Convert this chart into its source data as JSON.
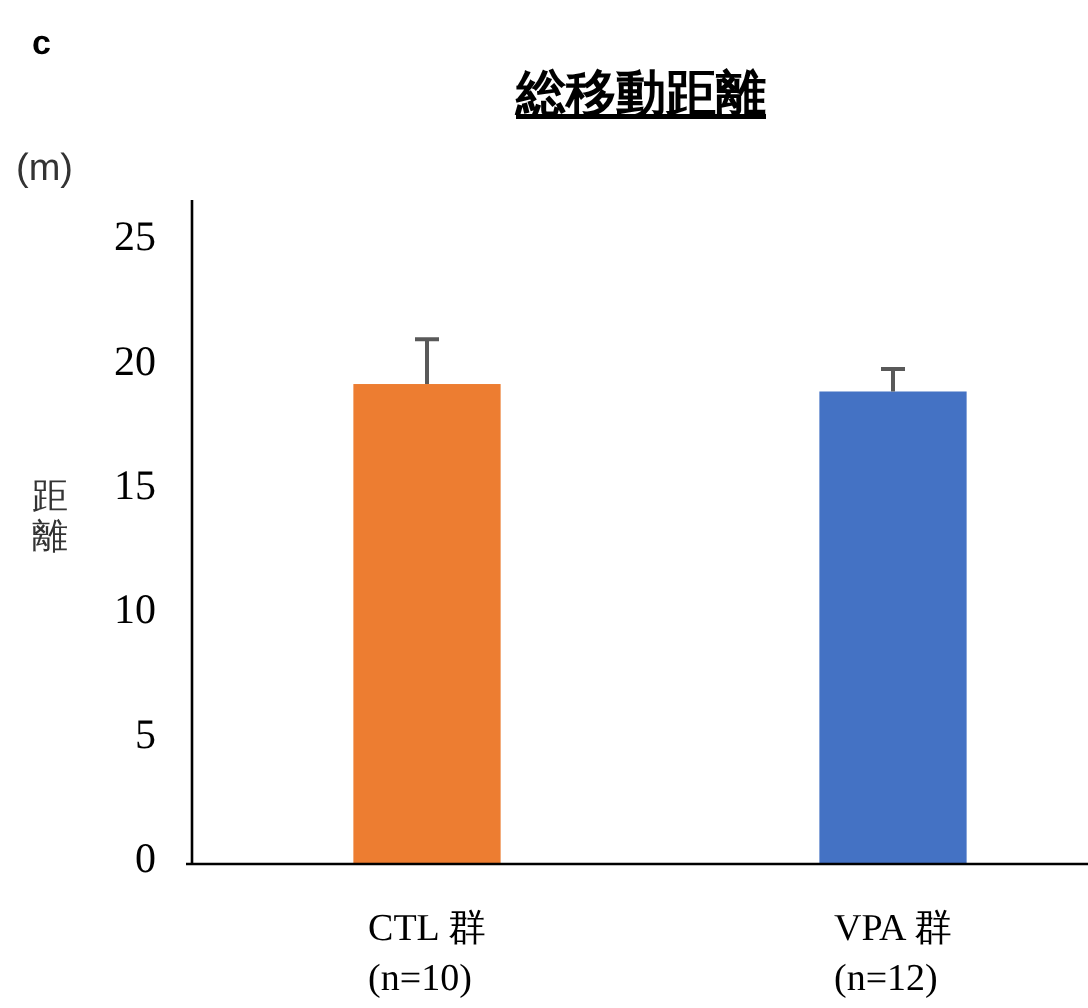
{
  "chart_data": {
    "type": "bar",
    "title": "総移動距離",
    "ylabel": "距離",
    "annotations": [
      "c",
      "(m)"
    ],
    "categories": [
      "CTL 群\n(n=10)",
      "VPA 群\n(n=12)"
    ],
    "values": [
      19.3,
      19.0
    ],
    "colors": [
      "#ed7d31",
      "#4472c4"
    ],
    "errors": [
      [
        19.3,
        21.1
      ],
      [
        19.0,
        19.9
      ]
    ],
    "ylim": [
      0,
      26.7
    ],
    "yticks": [
      0,
      5,
      10,
      15,
      20,
      25
    ],
    "grid": false
  }
}
